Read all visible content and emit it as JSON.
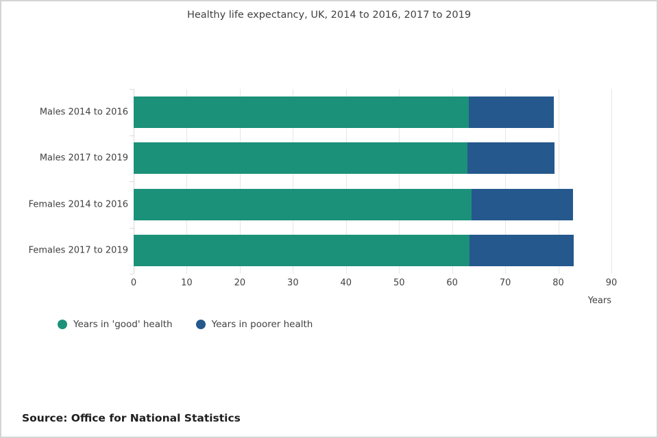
{
  "title": "Healthy life expectancy, UK, 2014 to 2016, 2017 to 2019",
  "chart_data": {
    "type": "bar",
    "orientation": "horizontal",
    "stacked": true,
    "title": "Healthy life expectancy, UK, 2014 to 2016, 2017 to 2019",
    "categories": [
      "Males 2014 to 2016",
      "Males 2017 to 2019",
      "Females 2014 to 2016",
      "Females 2017 to 2019"
    ],
    "series": [
      {
        "name": "Years in 'good' health",
        "color": "#1b9179",
        "values": [
          63.1,
          62.9,
          63.7,
          63.3
        ]
      },
      {
        "name": "Years in poorer health",
        "color": "#25588d",
        "values": [
          16.0,
          16.4,
          19.1,
          19.6
        ]
      }
    ],
    "totals": [
      79.1,
      79.3,
      82.8,
      82.9
    ],
    "xlabel": "Years",
    "ylabel": "",
    "xlim": [
      0,
      90
    ],
    "x_ticks": [
      0,
      10,
      20,
      30,
      40,
      50,
      60,
      70,
      80,
      90
    ],
    "grid": true,
    "legend_position": "bottom"
  },
  "legend": {
    "items": [
      {
        "label": "Years in 'good' health",
        "color": "#1b9179"
      },
      {
        "label": "Years in poorer health",
        "color": "#25588d"
      }
    ]
  },
  "footer": {
    "source": "Source: Office for National Statistics"
  },
  "colors": {
    "good_health": "#1b9179",
    "poorer_health": "#25588d",
    "gridline": "#e6e6e6",
    "text": "#414042"
  }
}
